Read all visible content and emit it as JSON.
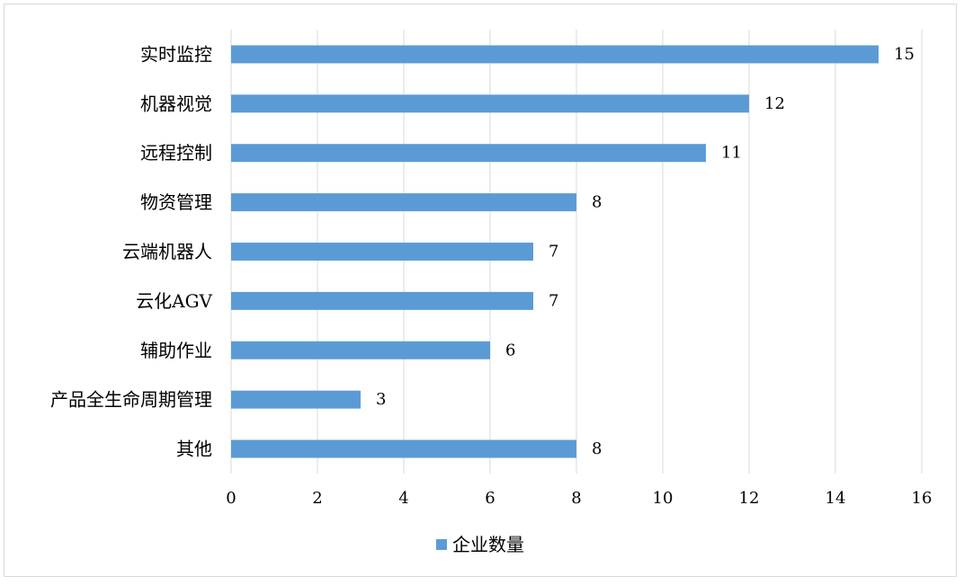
{
  "chart_data": {
    "type": "bar",
    "orientation": "horizontal",
    "categories": [
      "实时监控",
      "机器视觉",
      "远程控制",
      "物资管理",
      "云端机器人",
      "云化AGV",
      "辅助作业",
      "产品全生命周期管理",
      "其他"
    ],
    "series": [
      {
        "name": "企业数量",
        "values": [
          15,
          12,
          11,
          8,
          7,
          7,
          6,
          3,
          8
        ],
        "color": "#5b9bd5"
      }
    ],
    "xlim": [
      0,
      16
    ],
    "xticks": [
      "0",
      "2",
      "4",
      "6",
      "8",
      "10",
      "12",
      "14",
      "16"
    ],
    "grid": "vertical",
    "legend_position": "bottom",
    "data_labels": true
  }
}
